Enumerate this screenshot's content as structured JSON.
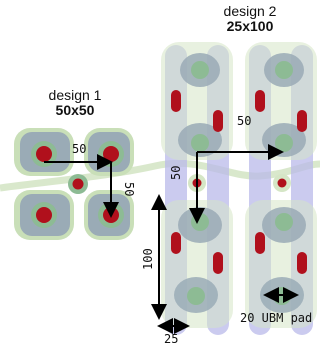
{
  "design1": {
    "title": "design 1",
    "size_label": "50x50",
    "dimensions": {
      "pitch_horizontal": "50",
      "pitch_vertical": "50"
    }
  },
  "design2": {
    "title": "design 2",
    "size_label": "25x100",
    "dimensions": {
      "pitch_top": "50",
      "pitch_left": "50",
      "height": "100",
      "width": "25",
      "ubm_pad": "20 UBM pad"
    }
  },
  "colors": {
    "pad_outer": "#c9dfb8",
    "pad_grey": "#9aabb6",
    "pad_green": "#8dbb94",
    "via_red": "#b0101c",
    "trace_lavender": "#b9b9ea",
    "trace_green": "#d5e6c6"
  },
  "icons": [
    "arrow-double-icon"
  ]
}
